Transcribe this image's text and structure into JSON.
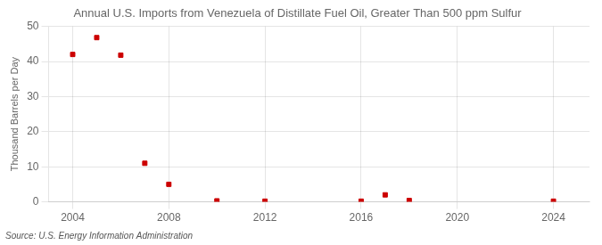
{
  "chart_data": {
    "type": "scatter",
    "title": "Annual U.S. Imports from Venezuela of Distillate Fuel Oil, Greater Than 500 ppm Sulfur",
    "ylabel": "Thousand Barrels per Day",
    "annotation": "Source: U.S. Energy Information Administration",
    "x": [
      2004,
      2005,
      2006,
      2007,
      2008,
      2010,
      2012,
      2016,
      2017,
      2018,
      2024
    ],
    "values": [
      42.0,
      46.8,
      41.8,
      11.0,
      5.0,
      0.3,
      0.2,
      0.2,
      2.0,
      0.4,
      0.2
    ],
    "color": "#cc0000",
    "marker": "square",
    "xlim": [
      2003,
      2025.5
    ],
    "ylim": [
      0,
      50
    ],
    "xticks": [
      2004,
      2008,
      2012,
      2016,
      2020,
      2024
    ],
    "yticks": [
      0,
      10,
      20,
      30,
      40,
      50
    ],
    "grid": true
  }
}
